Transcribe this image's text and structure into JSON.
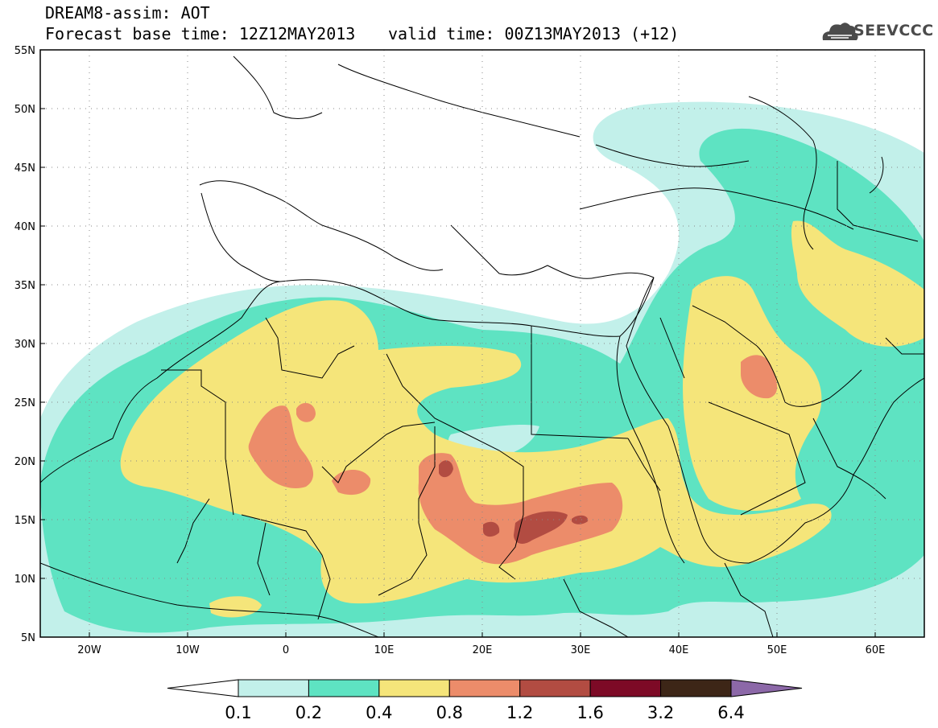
{
  "header": {
    "line1": "DREAM8-assim: AOT",
    "line2": "Forecast base time: 12Z12MAY2013",
    "valid": "valid time: 00Z13MAY2013 (+12)"
  },
  "logo": {
    "text": "SEEVCCC",
    "icon": "cloud-icon",
    "color": "#4b4b4b"
  },
  "axes": {
    "lat_labels": [
      "55N",
      "50N",
      "45N",
      "40N",
      "35N",
      "30N",
      "25N",
      "20N",
      "15N",
      "10N",
      "5N"
    ],
    "lat_values": [
      55,
      50,
      45,
      40,
      35,
      30,
      25,
      20,
      15,
      10,
      5
    ],
    "lon_labels": [
      "20W",
      "10W",
      "0",
      "10E",
      "20E",
      "30E",
      "40E",
      "50E",
      "60E"
    ],
    "lon_values": [
      -20,
      -10,
      0,
      10,
      20,
      30,
      40,
      50,
      60
    ],
    "lon_range": [
      -25,
      65
    ],
    "lat_range": [
      5,
      55
    ]
  },
  "legend": {
    "labels": [
      "0.1",
      "0.2",
      "0.4",
      "0.8",
      "1.2",
      "1.6",
      "3.2",
      "6.4"
    ],
    "colors": [
      "#ffffff",
      "#c2f0ea",
      "#5ee3c2",
      "#f5e57a",
      "#ec8c6a",
      "#b24c42",
      "#7d0a26",
      "#3d2617",
      "#8c68a8"
    ]
  }
}
